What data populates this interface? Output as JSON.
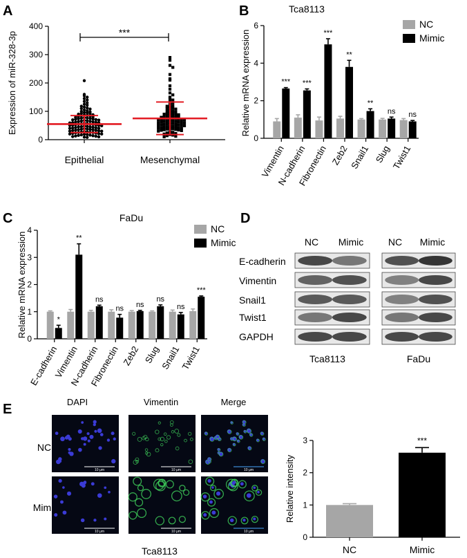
{
  "panel_letters": [
    "A",
    "B",
    "C",
    "D",
    "E"
  ],
  "colors": {
    "nc": "#a6a6a6",
    "mimic": "#000000",
    "scatter_bar": "#e31b23",
    "blot_dark": "#2b2b2b",
    "micro_bg": "#050814"
  },
  "chart_data": [
    {
      "panel": "A",
      "type": "scatter",
      "title": "",
      "ylabel": "Expression of miR-328-3p",
      "xlabel": "",
      "categories": [
        "Epithelial",
        "Mesenchymal"
      ],
      "ylim": [
        0,
        400
      ],
      "yticks": [
        0,
        100,
        200,
        300,
        400
      ],
      "summary": [
        {
          "category": "Epithelial",
          "mean": 55,
          "sd_low": 25,
          "sd_high": 85
        },
        {
          "category": "Mesenchymal",
          "mean": 75,
          "sd_low": 18,
          "sd_high": 133
        }
      ],
      "significance": "***",
      "points": {
        "Epithelial": [
          208,
          160,
          155,
          150,
          145,
          140,
          135,
          130,
          125,
          122,
          118,
          115,
          112,
          110,
          108,
          105,
          102,
          100,
          98,
          96,
          95,
          93,
          92,
          90,
          88,
          87,
          86,
          85,
          84,
          82,
          80,
          79,
          78,
          77,
          76,
          75,
          74,
          73,
          72,
          71,
          70,
          69,
          68,
          67,
          66,
          65,
          64,
          63,
          62,
          61,
          60,
          60,
          59,
          58,
          57,
          56,
          55,
          55,
          54,
          53,
          52,
          51,
          50,
          50,
          49,
          48,
          47,
          46,
          45,
          45,
          44,
          43,
          42,
          41,
          40,
          40,
          39,
          38,
          37,
          36,
          35,
          35,
          34,
          33,
          32,
          31,
          30,
          30,
          29,
          28,
          27,
          26,
          25,
          25,
          24,
          23,
          22,
          21,
          20,
          20,
          19,
          18,
          17,
          16,
          15,
          14,
          13,
          12,
          11,
          10,
          9,
          8
        ],
        "Mesenchymal": [
          290,
          280,
          262,
          255,
          230,
          215,
          210,
          190,
          178,
          165,
          158,
          150,
          145,
          140,
          135,
          130,
          125,
          120,
          118,
          115,
          112,
          110,
          108,
          105,
          102,
          100,
          98,
          96,
          95,
          93,
          92,
          90,
          88,
          87,
          86,
          85,
          84,
          82,
          80,
          79,
          78,
          77,
          76,
          75,
          74,
          73,
          72,
          71,
          70,
          69,
          68,
          67,
          66,
          65,
          64,
          63,
          62,
          61,
          60,
          59,
          58,
          57,
          56,
          55,
          54,
          53,
          52,
          51,
          50,
          49,
          48,
          47,
          46,
          45,
          44,
          43,
          42,
          41,
          40,
          39,
          38,
          37,
          36,
          35,
          34,
          33,
          32,
          30,
          28,
          26,
          24,
          22,
          20,
          18,
          16,
          14,
          12,
          10
        ]
      }
    },
    {
      "panel": "B",
      "type": "bar",
      "title": "Tca8113",
      "ylabel": "Relative mRNA expression",
      "xlabel": "",
      "ylim": [
        0,
        6
      ],
      "yticks": [
        0,
        2,
        4,
        6
      ],
      "categories": [
        "Vimentin",
        "N-cadherin",
        "Fibronectin",
        "Zeb2",
        "Snail1",
        "Slug",
        "Twist1"
      ],
      "series": [
        {
          "name": "NC",
          "values": [
            0.9,
            1.1,
            0.95,
            1.05,
            1.0,
            1.0,
            0.97
          ],
          "errors": [
            0.15,
            0.15,
            0.18,
            0.12,
            0.05,
            0.06,
            0.08
          ]
        },
        {
          "name": "Mimic",
          "values": [
            2.65,
            2.55,
            5.0,
            3.8,
            1.45,
            1.05,
            0.9
          ],
          "errors": [
            0.05,
            0.08,
            0.3,
            0.35,
            0.12,
            0.08,
            0.05
          ]
        }
      ],
      "significance": [
        "***",
        "***",
        "***",
        "**",
        "**",
        "ns",
        "ns"
      ],
      "legend": "top-right"
    },
    {
      "panel": "C",
      "type": "bar",
      "title": "FaDu",
      "ylabel": "Relative mRNA expression",
      "xlabel": "",
      "ylim": [
        0,
        4
      ],
      "yticks": [
        0,
        1,
        2,
        3,
        4
      ],
      "categories": [
        "E-cadherin",
        "Vimentin",
        "N-cadherin",
        "Fibronectin",
        "Zeb2",
        "Slug",
        "Snail1",
        "Twist1"
      ],
      "series": [
        {
          "name": "NC",
          "values": [
            1.0,
            1.0,
            1.0,
            1.0,
            1.0,
            1.0,
            1.0,
            1.02
          ],
          "errors": [
            0.03,
            0.08,
            0.05,
            0.07,
            0.04,
            0.03,
            0.06,
            0.08
          ]
        },
        {
          "name": "Mimic",
          "values": [
            0.4,
            3.1,
            1.2,
            0.78,
            1.02,
            1.2,
            0.9,
            1.55
          ],
          "errors": [
            0.1,
            0.4,
            0.04,
            0.12,
            0.03,
            0.05,
            0.07,
            0.03
          ]
        }
      ],
      "significance": [
        "*",
        "**",
        "ns",
        "ns",
        "ns",
        "ns",
        "ns",
        "***"
      ],
      "legend": "top-right"
    },
    {
      "panel": "E",
      "type": "bar",
      "title": "",
      "ylabel": "Relative intensity",
      "xlabel": "",
      "ylim": [
        0,
        3
      ],
      "yticks": [
        0,
        1,
        2,
        3
      ],
      "categories": [
        "NC",
        "Mimic"
      ],
      "values": [
        1.0,
        2.62
      ],
      "errors": [
        0.04,
        0.16
      ],
      "significance": "***"
    }
  ],
  "western_blot": {
    "panel": "D",
    "rows": [
      "E-cadherin",
      "Vimentin",
      "Snail1",
      "Twist1",
      "GAPDH"
    ],
    "blots": [
      {
        "cell_line": "Tca8113",
        "lanes": [
          "NC",
          "Mimic"
        ]
      },
      {
        "cell_line": "FaDu",
        "lanes": [
          "NC",
          "Mimic"
        ]
      }
    ]
  },
  "microscopy": {
    "panel": "E",
    "columns": [
      "DAPI",
      "Vimentin",
      "Merge"
    ],
    "rows": [
      "NC",
      "Mimic"
    ],
    "scale_bar": "10 μm",
    "cell_line": "Tca8113"
  }
}
